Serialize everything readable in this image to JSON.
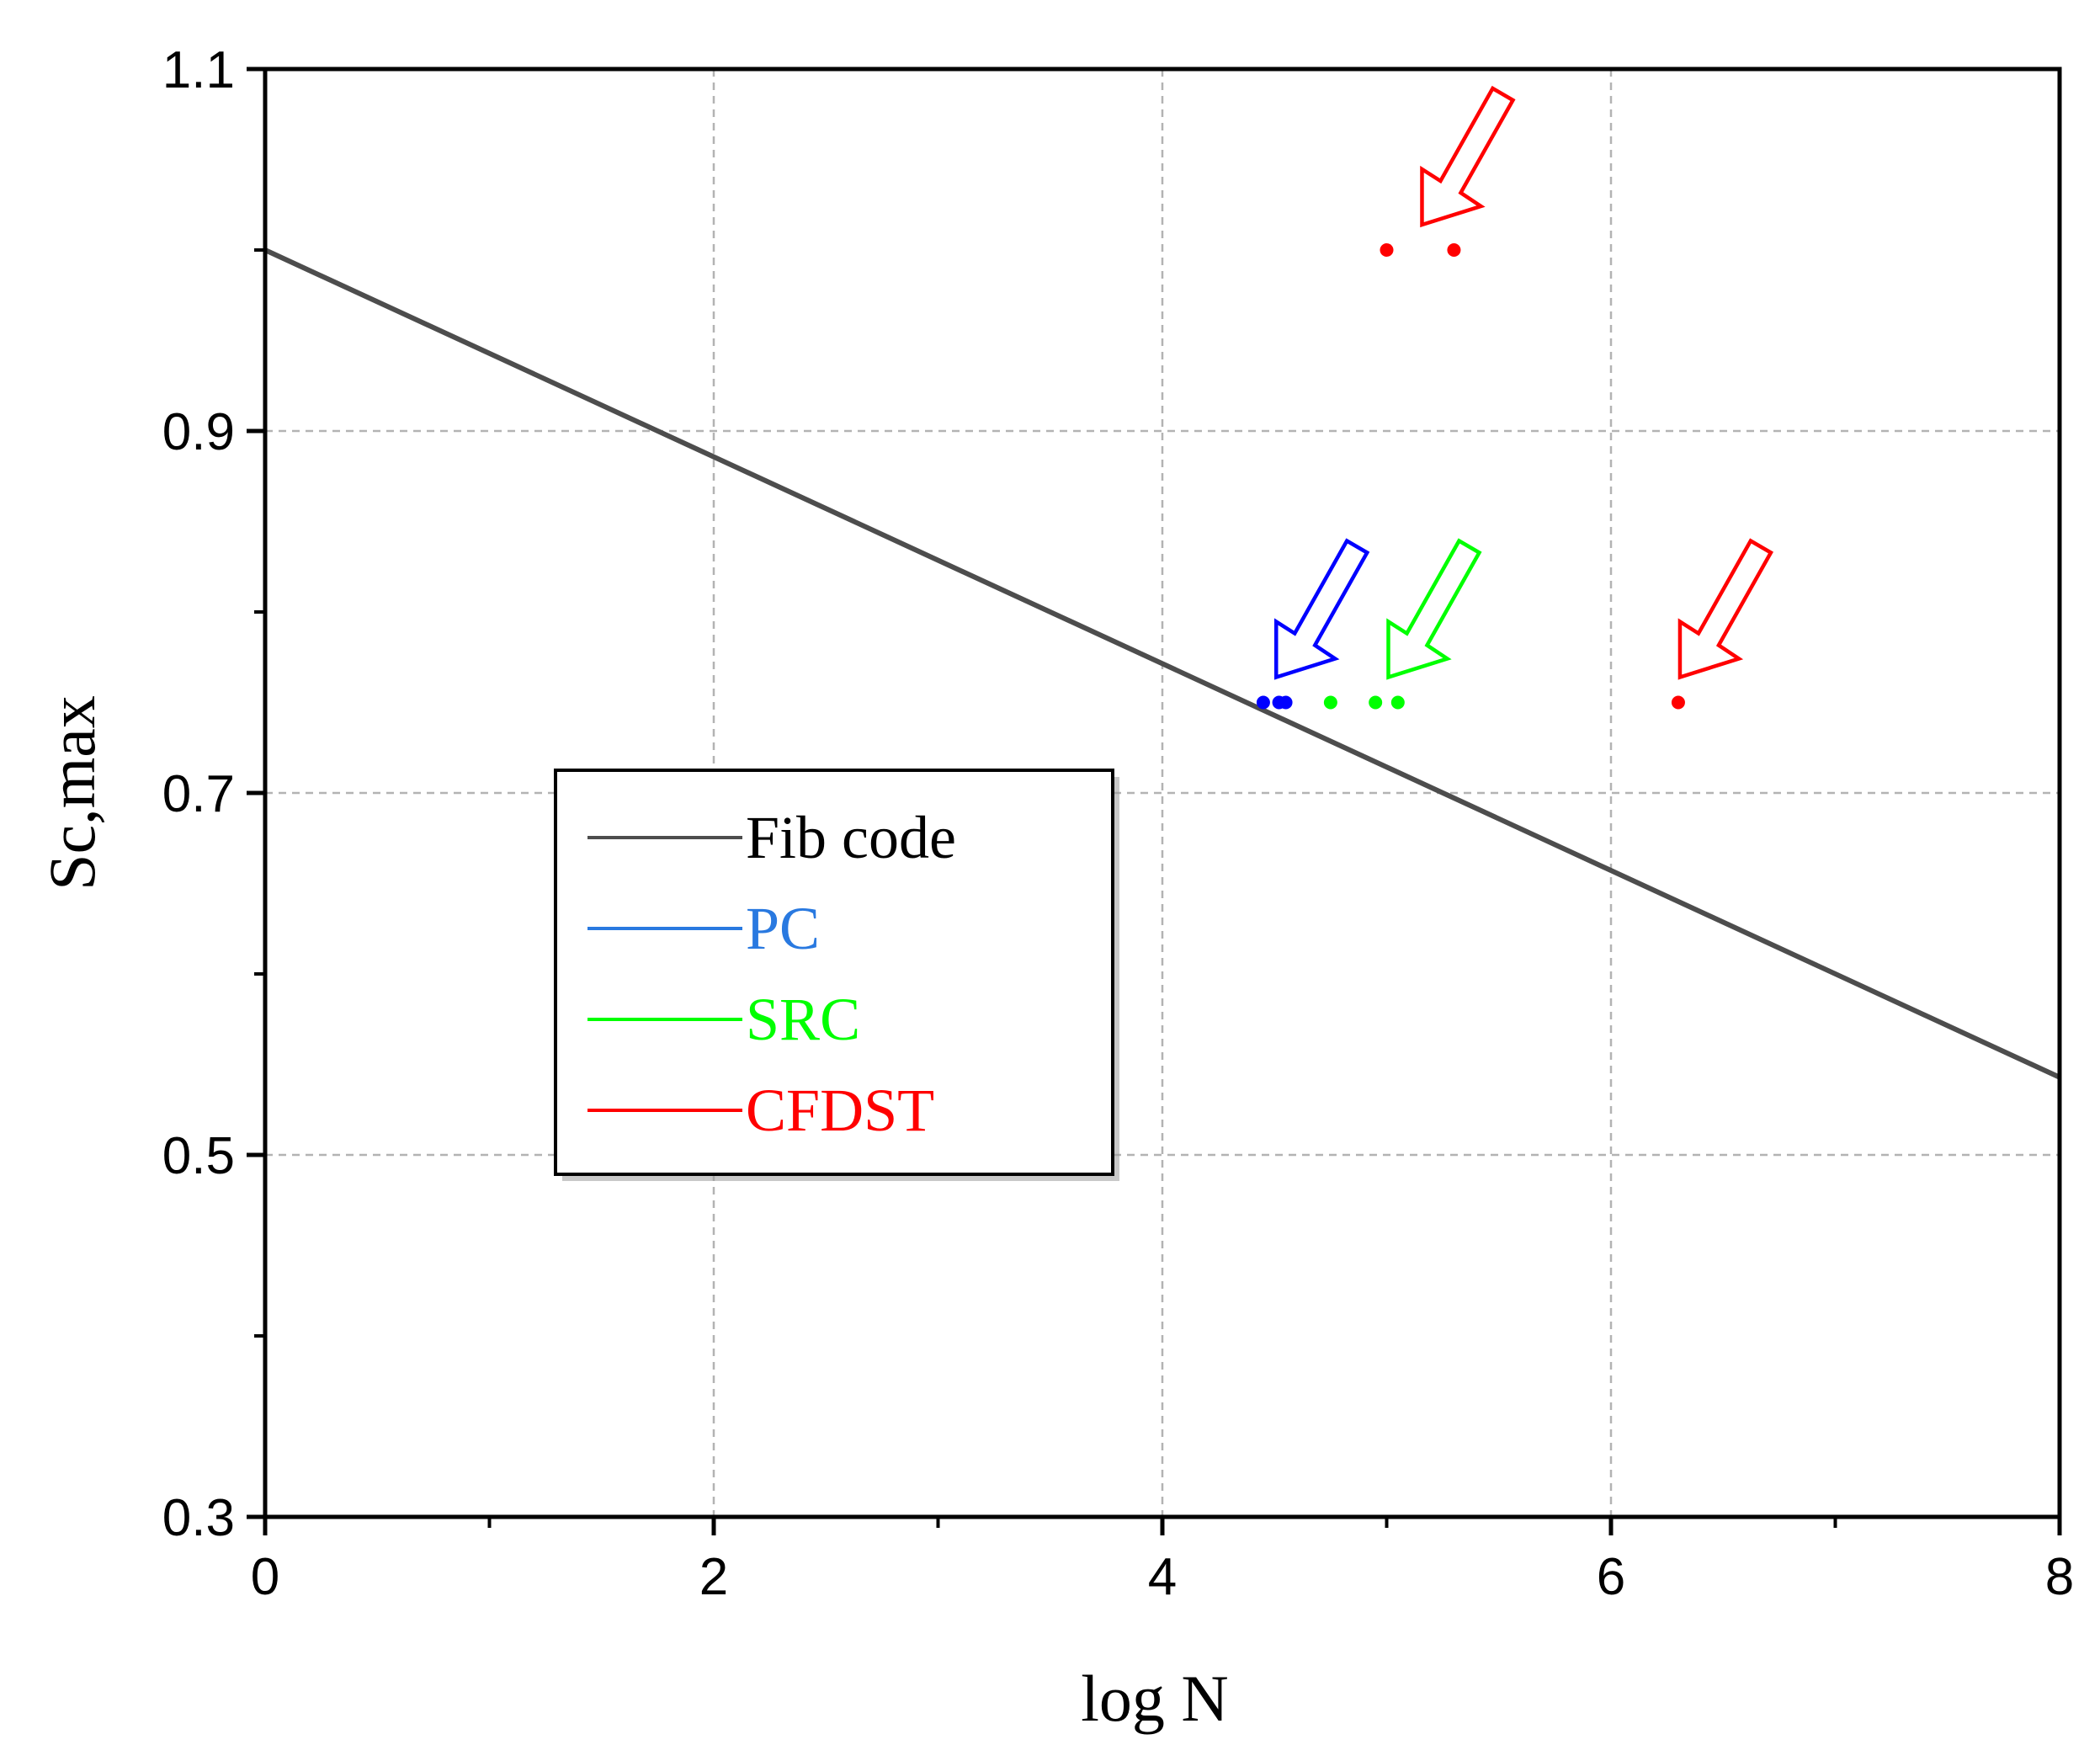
{
  "chart_data": {
    "type": "scatter",
    "xlabel": "log N",
    "ylabel": "Sc,max",
    "xlim": [
      0,
      8
    ],
    "ylim": [
      0.3,
      1.1
    ],
    "x_ticks": [
      0,
      2,
      4,
      6,
      8
    ],
    "x_minor_ticks": [
      1,
      3,
      5,
      7
    ],
    "y_ticks": [
      0.3,
      0.5,
      0.7,
      0.9,
      1.1
    ],
    "y_minor_ticks": [
      0.4,
      0.6,
      0.8,
      1.0
    ],
    "grid": true,
    "legend_position": "center-left",
    "series": [
      {
        "name": "Fib code",
        "kind": "line",
        "color": "#4d4d4d",
        "x": [
          0,
          8
        ],
        "y": [
          1.0,
          0.5429
        ]
      },
      {
        "name": "PC",
        "kind": "scatter",
        "color": "#0000ff",
        "legend_color": "#2979e0",
        "x": [
          4.45,
          4.52,
          4.55
        ],
        "y": [
          0.75,
          0.75,
          0.75
        ]
      },
      {
        "name": "SRC",
        "kind": "scatter",
        "color": "#00ff00",
        "x": [
          4.75,
          4.95,
          5.05
        ],
        "y": [
          0.75,
          0.75,
          0.75
        ]
      },
      {
        "name": "CFDST",
        "kind": "scatter",
        "color": "#ff0000",
        "x": [
          5.0,
          5.3,
          6.3
        ],
        "y": [
          1.0,
          1.0,
          0.75
        ]
      }
    ],
    "annotations": [
      {
        "type": "arrow",
        "target": [
          4.5,
          0.75
        ],
        "color": "#0000ff"
      },
      {
        "type": "arrow",
        "target": [
          5.0,
          0.75
        ],
        "color": "#00ff00"
      },
      {
        "type": "arrow",
        "target": [
          5.15,
          1.0
        ],
        "color": "#ff0000"
      },
      {
        "type": "arrow",
        "target": [
          6.3,
          0.75
        ],
        "color": "#ff0000"
      }
    ]
  }
}
